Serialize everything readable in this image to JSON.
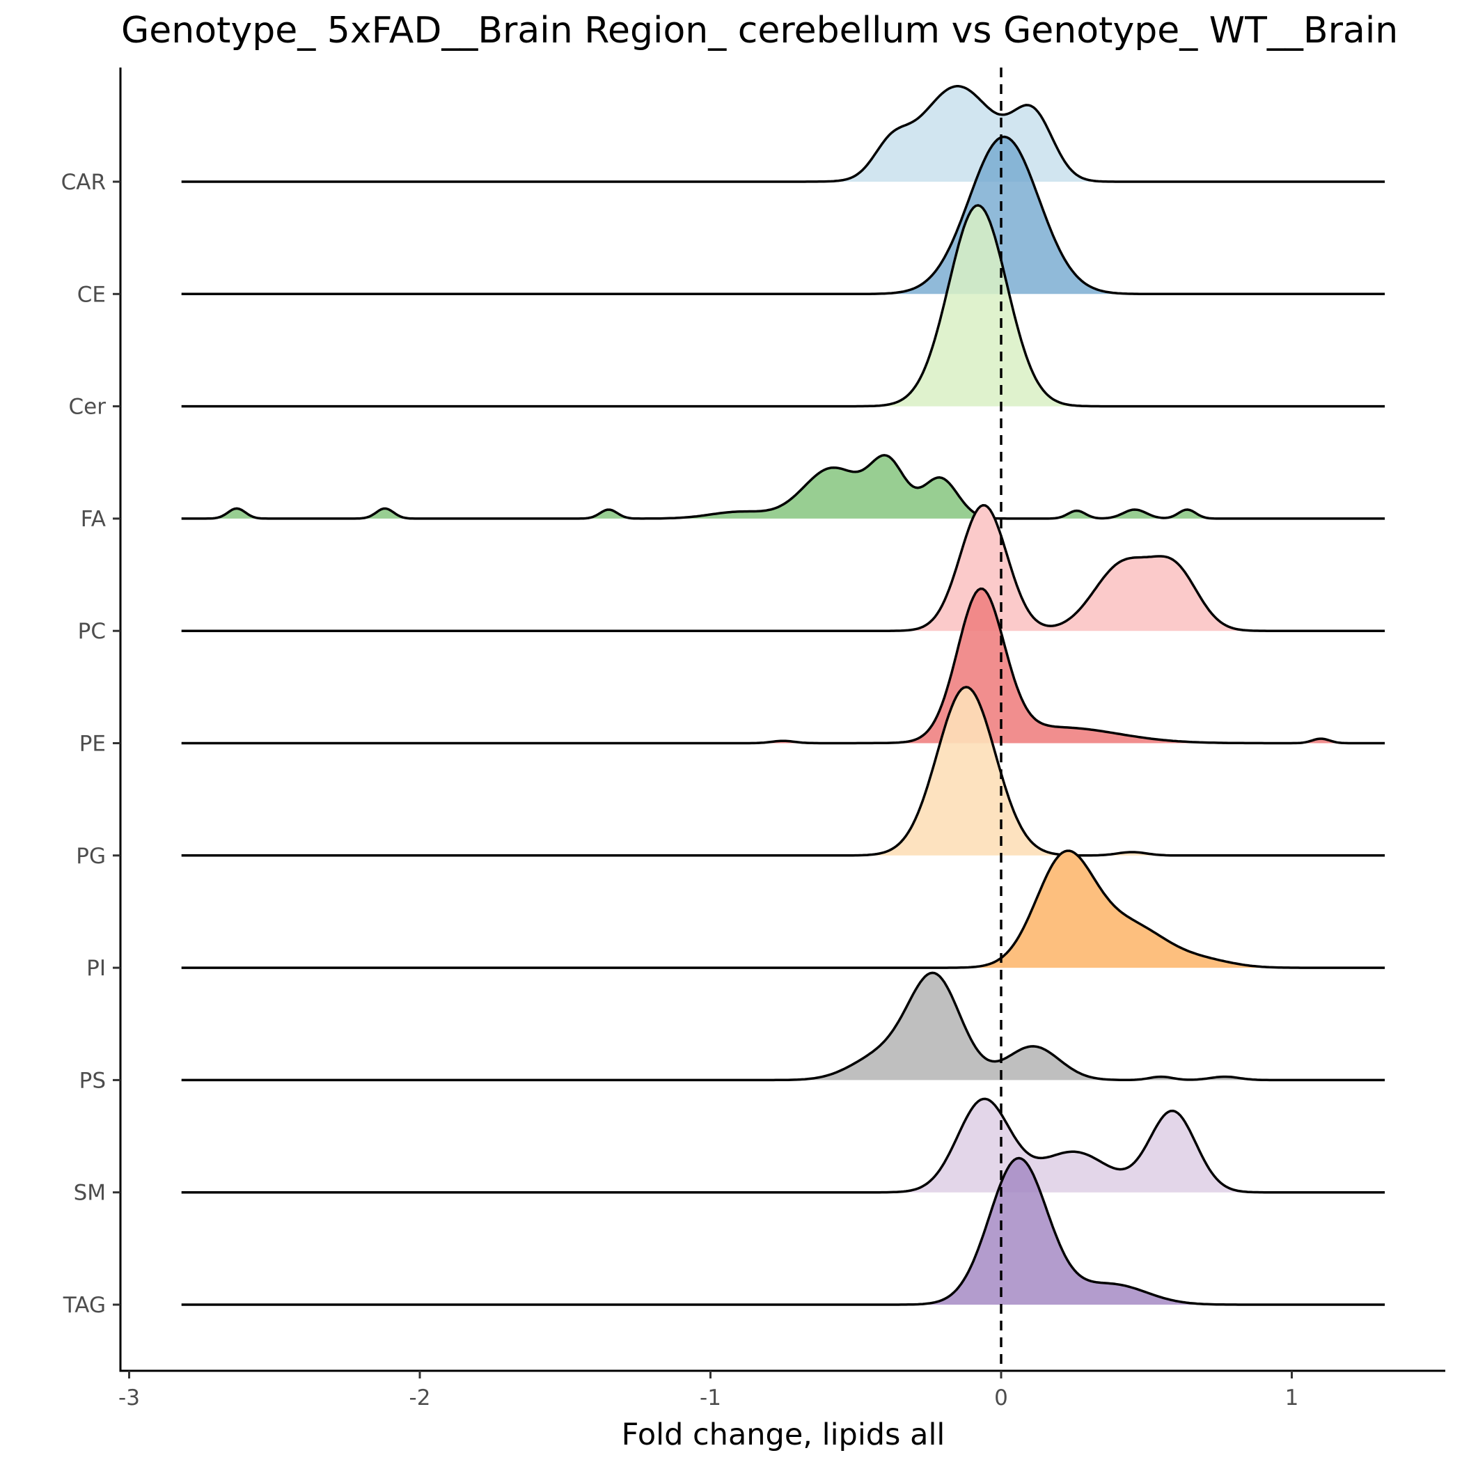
{
  "chart_data": {
    "type": "ridgeline",
    "title": "Genotype_ 5xFAD__Brain Region_ cerebellum vs Genotype_ WT__Brain",
    "xlabel": "Fold change, lipids all",
    "ylabel": "",
    "xlim": [
      -3.03,
      1.5
    ],
    "x_ticks": [
      -3,
      -2,
      -1,
      0,
      1
    ],
    "x_tick_labels": [
      "-3",
      "-2",
      "-1",
      "0",
      "1"
    ],
    "reference_line": {
      "x": 0,
      "style": "dashed"
    },
    "grid": false,
    "legend": "none",
    "x_range_drawn": [
      -2.82,
      1.32
    ],
    "series": [
      {
        "name": "CAR",
        "color": "#D1E5F0",
        "peaks": [
          {
            "c": -0.15,
            "s": 0.13,
            "h": 0.85
          },
          {
            "c": 0.11,
            "s": 0.07,
            "h": 0.55
          },
          {
            "c": -0.38,
            "s": 0.06,
            "h": 0.25
          }
        ]
      },
      {
        "name": "CE",
        "color": "#74A9CF",
        "alpha": 0.8,
        "peaks": [
          {
            "c": 0.01,
            "s": 0.12,
            "h": 1.4
          }
        ]
      },
      {
        "name": "Cer",
        "color": "#D9F0C4",
        "alpha": 0.85,
        "peaks": [
          {
            "c": -0.08,
            "s": 0.1,
            "h": 1.79
          }
        ]
      },
      {
        "name": "FA",
        "color": "#98CE92",
        "peaks": [
          {
            "c": -0.58,
            "s": 0.1,
            "h": 0.45
          },
          {
            "c": -0.39,
            "s": 0.06,
            "h": 0.48
          },
          {
            "c": -0.21,
            "s": 0.06,
            "h": 0.36
          },
          {
            "c": -0.9,
            "s": 0.1,
            "h": 0.06
          },
          {
            "c": -2.63,
            "s": 0.03,
            "h": 0.09
          },
          {
            "c": -2.12,
            "s": 0.03,
            "h": 0.09
          },
          {
            "c": -1.35,
            "s": 0.03,
            "h": 0.08
          },
          {
            "c": 0.26,
            "s": 0.03,
            "h": 0.07
          },
          {
            "c": 0.46,
            "s": 0.04,
            "h": 0.08
          },
          {
            "c": 0.64,
            "s": 0.03,
            "h": 0.08
          }
        ]
      },
      {
        "name": "PC",
        "color": "#FBCACA",
        "peaks": [
          {
            "c": -0.06,
            "s": 0.08,
            "h": 1.12
          },
          {
            "c": 0.42,
            "s": 0.1,
            "h": 0.59
          },
          {
            "c": 0.6,
            "s": 0.08,
            "h": 0.5
          }
        ]
      },
      {
        "name": "PE",
        "color": "#EF8282",
        "alpha": 0.9,
        "peaks": [
          {
            "c": -0.07,
            "s": 0.08,
            "h": 1.32
          },
          {
            "c": 0.2,
            "s": 0.2,
            "h": 0.14
          },
          {
            "c": 1.1,
            "s": 0.03,
            "h": 0.04
          },
          {
            "c": -0.75,
            "s": 0.04,
            "h": 0.02
          }
        ]
      },
      {
        "name": "PG",
        "color": "#FDDFB8",
        "alpha": 0.9,
        "peaks": [
          {
            "c": -0.12,
            "s": 0.1,
            "h": 1.5
          },
          {
            "c": 0.45,
            "s": 0.05,
            "h": 0.03
          }
        ]
      },
      {
        "name": "PI",
        "color": "#FDBF7E",
        "peaks": [
          {
            "c": 0.22,
            "s": 0.1,
            "h": 0.98
          },
          {
            "c": 0.45,
            "s": 0.12,
            "h": 0.36
          },
          {
            "c": 0.7,
            "s": 0.1,
            "h": 0.06
          }
        ]
      },
      {
        "name": "PS",
        "color": "#BFBFBF",
        "peaks": [
          {
            "c": -0.23,
            "s": 0.09,
            "h": 0.92
          },
          {
            "c": 0.11,
            "s": 0.09,
            "h": 0.3
          },
          {
            "c": -0.42,
            "s": 0.1,
            "h": 0.2
          },
          {
            "c": 0.55,
            "s": 0.04,
            "h": 0.03
          },
          {
            "c": 0.77,
            "s": 0.05,
            "h": 0.03
          }
        ]
      },
      {
        "name": "SM",
        "color": "#E3D6E9",
        "peaks": [
          {
            "c": -0.06,
            "s": 0.09,
            "h": 0.82
          },
          {
            "c": 0.59,
            "s": 0.08,
            "h": 0.72
          },
          {
            "c": 0.25,
            "s": 0.12,
            "h": 0.36
          }
        ]
      },
      {
        "name": "TAG",
        "color": "#A68BC4",
        "alpha": 0.85,
        "peaks": [
          {
            "c": 0.06,
            "s": 0.1,
            "h": 1.3
          },
          {
            "c": 0.38,
            "s": 0.12,
            "h": 0.18
          }
        ]
      }
    ]
  }
}
